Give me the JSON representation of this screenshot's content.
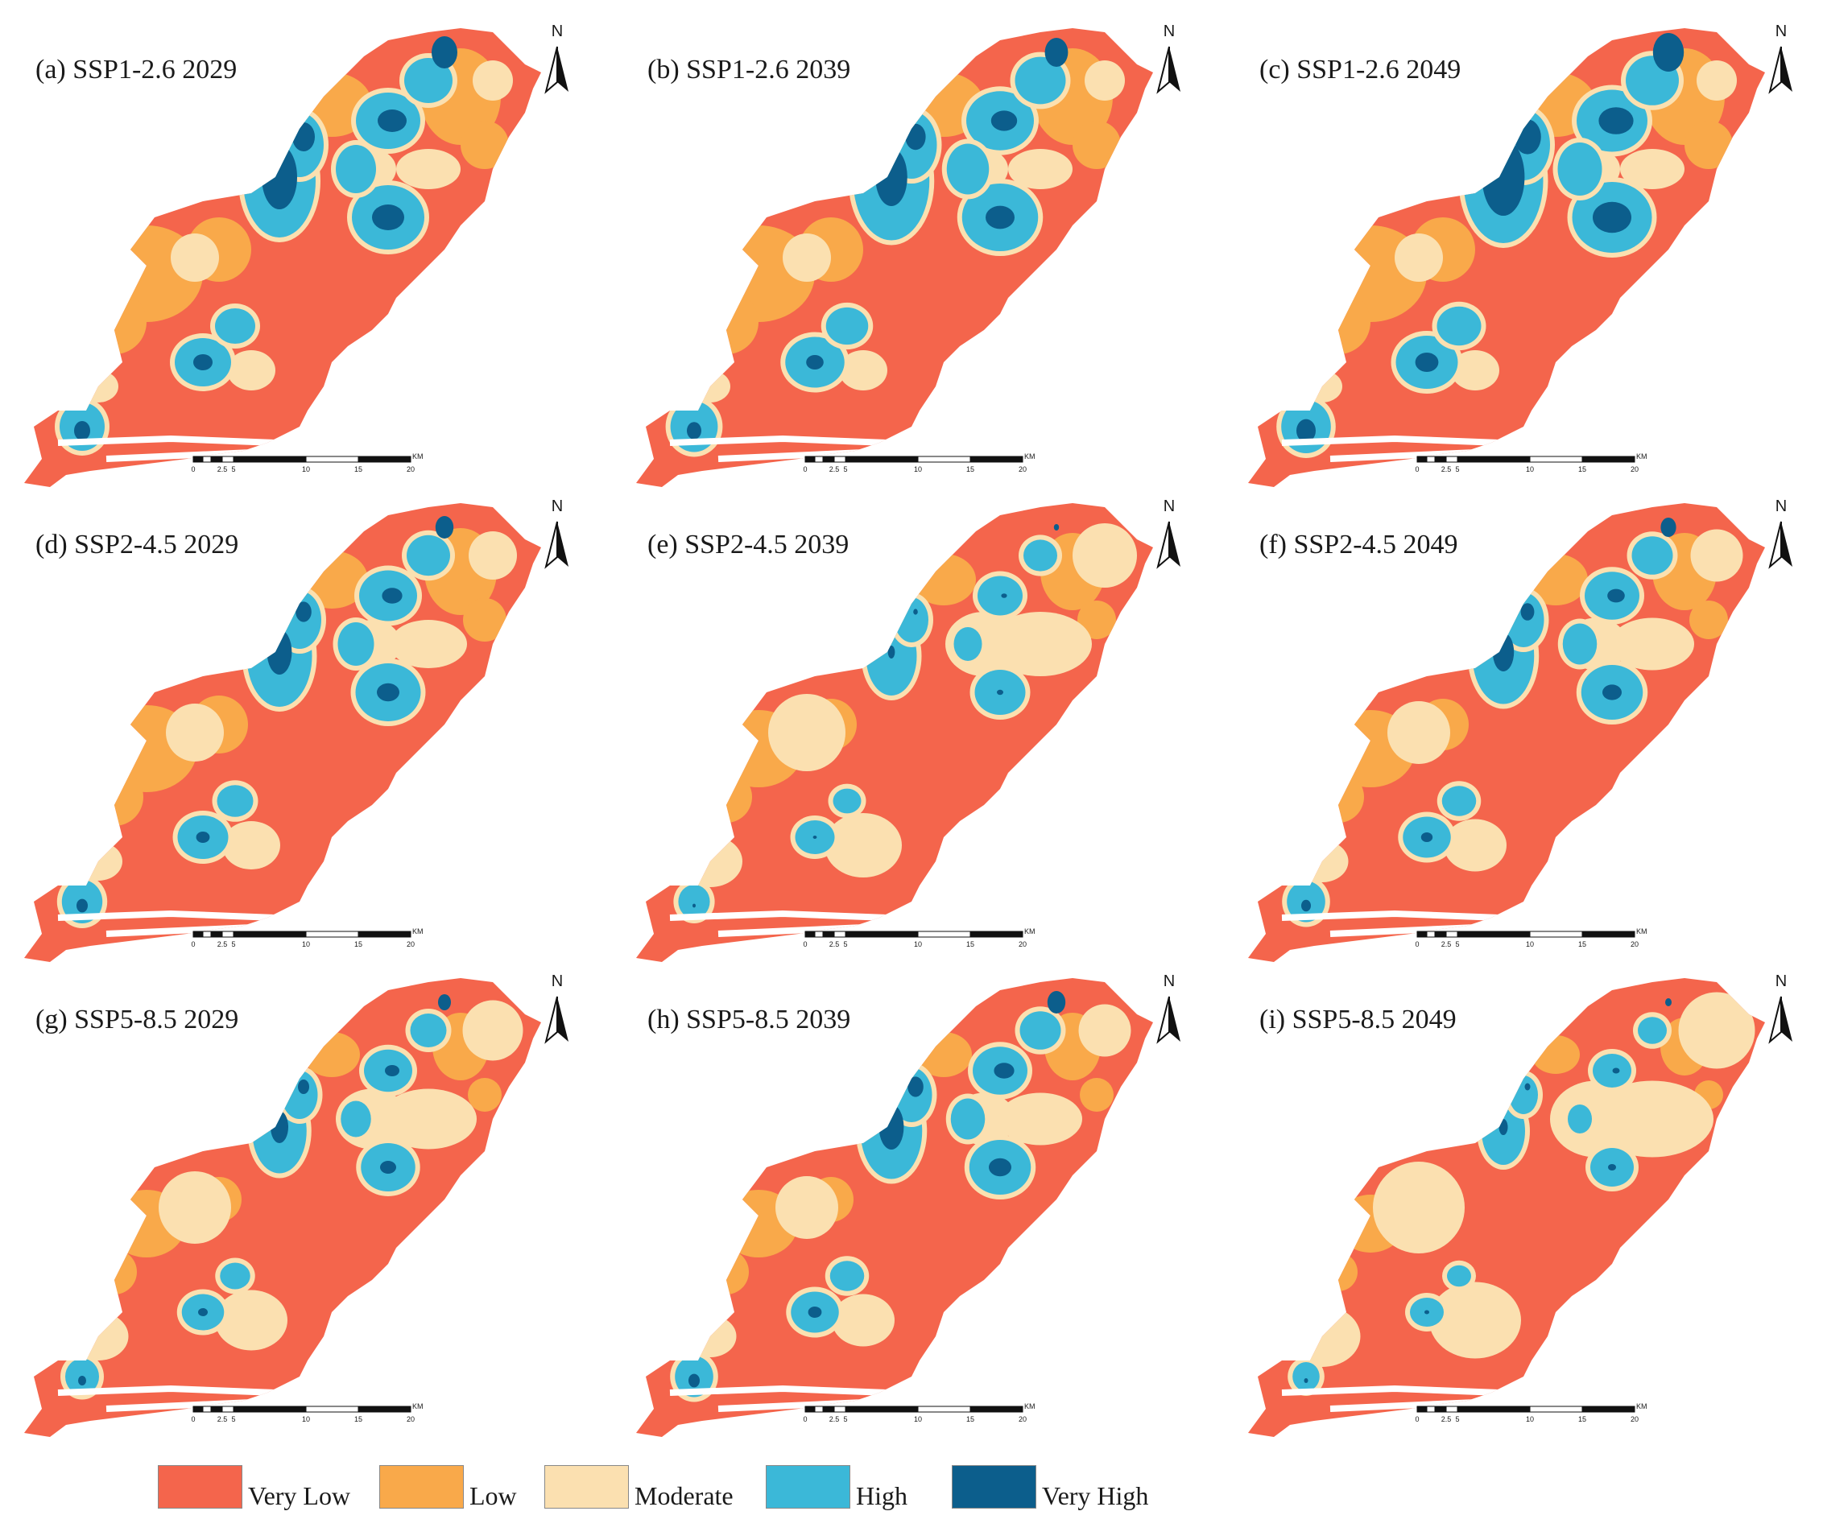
{
  "colors": {
    "very_low": "#f4654c",
    "low": "#f9a94a",
    "moderate": "#fbe0b0",
    "high": "#3bb8d8",
    "very_high": "#0c5e8c",
    "sea": "#ffffff",
    "outline": "#e84f3c"
  },
  "panels": [
    {
      "title": "(a) SSP1-2.6 2029",
      "scenario": "SSP1-2.6",
      "year": "2029"
    },
    {
      "title": "(b) SSP1-2.6 2039",
      "scenario": "SSP1-2.6",
      "year": "2039"
    },
    {
      "title": "(c) SSP1-2.6 2049",
      "scenario": "SSP1-2.6",
      "year": "2049"
    },
    {
      "title": "(d) SSP2-4.5 2029",
      "scenario": "SSP2-4.5",
      "year": "2029"
    },
    {
      "title": "(e) SSP2-4.5 2039",
      "scenario": "SSP2-4.5",
      "year": "2039"
    },
    {
      "title": "(f) SSP2-4.5 2049",
      "scenario": "SSP2-4.5",
      "year": "2049"
    },
    {
      "title": "(g) SSP5-8.5 2029",
      "scenario": "SSP5-8.5",
      "year": "2029"
    },
    {
      "title": "(h) SSP5-8.5 2039",
      "scenario": "SSP5-8.5",
      "year": "2039"
    },
    {
      "title": "(i) SSP5-8.5 2049",
      "scenario": "SSP5-8.5",
      "year": "2049"
    }
  ],
  "north_arrow": {
    "label": "N"
  },
  "scale_bar": {
    "unit": "KM",
    "ticks": [
      "0",
      "2.5",
      "5",
      "10",
      "15",
      "20"
    ]
  },
  "legend": [
    {
      "label": "Very Low",
      "color": "#f4654c"
    },
    {
      "label": "Low",
      "color": "#f9a94a"
    },
    {
      "label": "Moderate",
      "color": "#fbe0b0"
    },
    {
      "label": "High",
      "color": "#3bb8d8"
    },
    {
      "label": "Very High",
      "color": "#0c5e8c"
    }
  ]
}
